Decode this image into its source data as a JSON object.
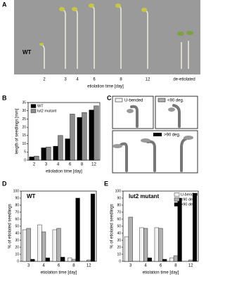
{
  "panel_labels": [
    "A",
    "B",
    "C",
    "D",
    "E"
  ],
  "photo": {
    "label": "WT",
    "ticks": [
      "2",
      "3",
      "4",
      "6",
      "8",
      "12",
      "de-etiolated"
    ],
    "xlabel": "etiolation time [day]"
  },
  "diagram": {
    "states": [
      "U-bended",
      "<90 deg.",
      ">90 deg."
    ]
  },
  "chart_data": [
    {
      "type": "bar",
      "ylabel": "length of seedlings [mm]",
      "xlabel": "etiolation time [day]",
      "categories": [
        "2",
        "3",
        "4",
        "6",
        "8",
        "12"
      ],
      "ylim": [
        0,
        35
      ],
      "yticks": [
        0,
        5,
        10,
        15,
        20,
        25,
        30,
        35
      ],
      "legend": "upper left",
      "series": [
        {
          "name": "WT",
          "color": "#000000",
          "values": [
            2,
            7.5,
            8.5,
            13,
            26,
            30.5
          ]
        },
        {
          "name": "lut2 mutant",
          "color": "#8c8c8c",
          "values": [
            2.5,
            8,
            15,
            28,
            29,
            33
          ]
        }
      ]
    },
    {
      "type": "bar",
      "title": "WT",
      "ylabel": "% of etiolated seedlings",
      "xlabel": "etiolation time [day]",
      "categories": [
        "3",
        "4",
        "6",
        "8",
        "12"
      ],
      "ylim": [
        0,
        100
      ],
      "yticks": [
        0,
        10,
        20,
        30,
        40,
        50,
        60,
        70,
        80,
        90,
        100
      ],
      "series": [
        {
          "name": "U-bended",
          "color": "#f2f2f2",
          "values": [
            45,
            52,
            45,
            5,
            0
          ]
        },
        {
          "name": "<90 deg.",
          "color": "#b0b0b0",
          "values": [
            47,
            42,
            47,
            3,
            2
          ]
        },
        {
          "name": ">90 deg.",
          "color": "#000000",
          "values": [
            3,
            5,
            6,
            90,
            96
          ]
        }
      ]
    },
    {
      "type": "bar",
      "title": "lut2 mutant",
      "ylabel": "% of etiolated seedlings",
      "xlabel": "etiolation time [day]",
      "categories": [
        "3",
        "4",
        "6",
        "8",
        "12"
      ],
      "ylim": [
        0,
        100
      ],
      "yticks": [
        0,
        10,
        20,
        30,
        40,
        50,
        60,
        70,
        80,
        90,
        100
      ],
      "legend": "upper right",
      "series": [
        {
          "name": "U-bended",
          "color": "#f2f2f2",
          "values": [
            35,
            48,
            48,
            5,
            0
          ]
        },
        {
          "name": "<90 deg.",
          "color": "#b0b0b0",
          "values": [
            63,
            47,
            47,
            8,
            2
          ]
        },
        {
          "name": ">90 deg.",
          "color": "#000000",
          "values": [
            0,
            5,
            3,
            90,
            97
          ]
        }
      ]
    }
  ]
}
